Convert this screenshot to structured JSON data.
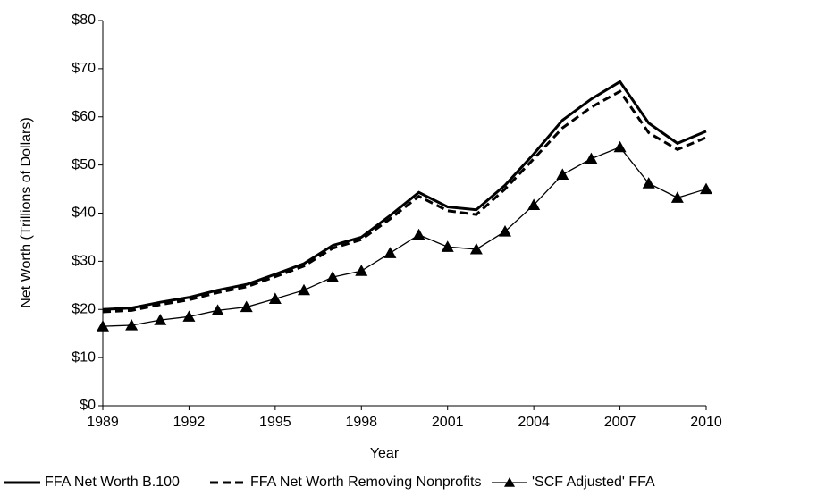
{
  "chart_data": {
    "type": "line",
    "x_label": "Year",
    "y_label": "Net Worth (Trillions of Dollars)",
    "x": [
      1989,
      1990,
      1991,
      1992,
      1993,
      1994,
      1995,
      1996,
      1997,
      1998,
      1999,
      2000,
      2001,
      2002,
      2003,
      2004,
      2005,
      2006,
      2007,
      2008,
      2009,
      2010
    ],
    "series": [
      {
        "name": "FFA Net Worth B.100",
        "color": "#000000",
        "style": "solid",
        "marker": "none",
        "values": [
          20,
          20.3,
          21.5,
          22.5,
          24,
          25.2,
          27.3,
          29.5,
          33.3,
          35,
          39.5,
          44.3,
          41.3,
          40.7,
          45.8,
          52.3,
          59.3,
          63.7,
          67.3,
          58.7,
          54.5,
          57
        ]
      },
      {
        "name": "FFA Net Worth Removing Nonprofits",
        "color": "#000000",
        "style": "dashed",
        "marker": "none",
        "values": [
          19.5,
          19.8,
          21,
          22,
          23.5,
          24.7,
          26.8,
          29,
          32.7,
          34.5,
          38.8,
          43.5,
          40.5,
          39.7,
          45,
          51.3,
          57.7,
          62,
          65.3,
          56.7,
          53.2,
          55.7
        ]
      },
      {
        "name": "'SCF Adjusted' FFA",
        "color": "#000000",
        "style": "thin",
        "marker": "triangle",
        "values": [
          16.5,
          16.7,
          17.8,
          18.5,
          19.8,
          20.5,
          22.2,
          24,
          26.7,
          28,
          31.7,
          35.5,
          33,
          32.5,
          36.2,
          41.7,
          48,
          51.3,
          53.7,
          46.2,
          43.2,
          45
        ]
      }
    ],
    "xlim": [
      1989,
      2010
    ],
    "xticks": [
      1989,
      1992,
      1995,
      1998,
      2001,
      2004,
      2007,
      2010
    ],
    "ylim": [
      0,
      80
    ],
    "yticks": [
      {
        "value": 0,
        "label": "$0"
      },
      {
        "value": 10,
        "label": "$10"
      },
      {
        "value": 20,
        "label": "$20"
      },
      {
        "value": 30,
        "label": "$30"
      },
      {
        "value": 40,
        "label": "$40"
      },
      {
        "value": 50,
        "label": "$50"
      },
      {
        "value": 60,
        "label": "$60"
      },
      {
        "value": 70,
        "label": "$70"
      },
      {
        "value": 80,
        "label": "$80"
      }
    ],
    "grid": false,
    "legend": "bottom"
  }
}
